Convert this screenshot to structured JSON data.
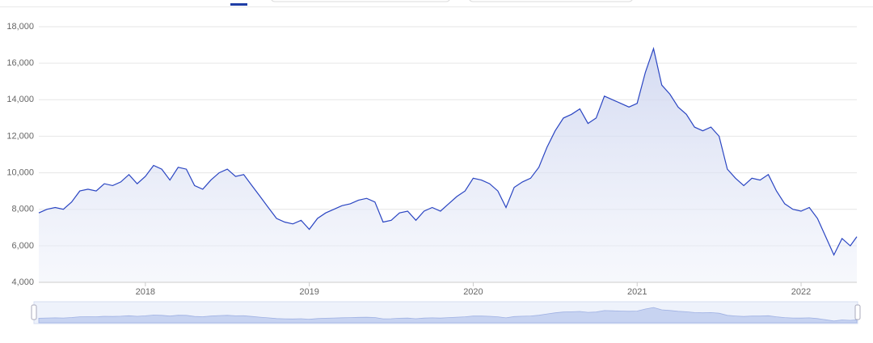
{
  "chart_data": {
    "type": "area",
    "color": "#2a45c2",
    "grid": true,
    "xlim": [
      2017.35,
      2022.34
    ],
    "xticks": [
      2018,
      2019,
      2020,
      2021,
      2022
    ],
    "ylim": [
      4000,
      18000
    ],
    "yticks": [
      {
        "value": 4000,
        "label": "4,000"
      },
      {
        "value": 6000,
        "label": "6,000"
      },
      {
        "value": 8000,
        "label": "8,000"
      },
      {
        "value": 10000,
        "label": "10,000"
      },
      {
        "value": 12000,
        "label": "12,000"
      },
      {
        "value": 14000,
        "label": "14,000"
      },
      {
        "value": 16000,
        "label": "16,000"
      },
      {
        "value": 18000,
        "label": "18,000"
      }
    ],
    "x": [
      2017.35,
      2017.4,
      2017.45,
      2017.5,
      2017.55,
      2017.6,
      2017.65,
      2017.7,
      2017.75,
      2017.8,
      2017.85,
      2017.9,
      2017.95,
      2018.0,
      2018.05,
      2018.1,
      2018.15,
      2018.2,
      2018.25,
      2018.3,
      2018.35,
      2018.4,
      2018.45,
      2018.5,
      2018.55,
      2018.6,
      2018.65,
      2018.7,
      2018.75,
      2018.8,
      2018.85,
      2018.9,
      2018.95,
      2019.0,
      2019.05,
      2019.1,
      2019.15,
      2019.2,
      2019.25,
      2019.3,
      2019.35,
      2019.4,
      2019.45,
      2019.5,
      2019.55,
      2019.6,
      2019.65,
      2019.7,
      2019.75,
      2019.8,
      2019.85,
      2019.9,
      2019.95,
      2020.0,
      2020.05,
      2020.1,
      2020.15,
      2020.2,
      2020.25,
      2020.3,
      2020.35,
      2020.4,
      2020.45,
      2020.5,
      2020.55,
      2020.6,
      2020.65,
      2020.7,
      2020.75,
      2020.8,
      2020.85,
      2020.9,
      2020.95,
      2021.0,
      2021.05,
      2021.1,
      2021.15,
      2021.2,
      2021.25,
      2021.3,
      2021.35,
      2021.4,
      2021.45,
      2021.5,
      2021.55,
      2021.6,
      2021.65,
      2021.7,
      2021.75,
      2021.8,
      2021.85,
      2021.9,
      2021.95,
      2022.0,
      2022.05,
      2022.1,
      2022.15,
      2022.2,
      2022.25,
      2022.3,
      2022.34
    ],
    "values": [
      7800,
      8000,
      8100,
      8000,
      8400,
      9000,
      9100,
      9000,
      9400,
      9300,
      9500,
      9900,
      9400,
      9800,
      10400,
      10200,
      9600,
      10300,
      10200,
      9300,
      9100,
      9600,
      10000,
      10200,
      9800,
      9900,
      9300,
      8700,
      8100,
      7500,
      7300,
      7200,
      7400,
      6900,
      7500,
      7800,
      8000,
      8200,
      8300,
      8500,
      8600,
      8400,
      7300,
      7400,
      7800,
      7900,
      7400,
      7900,
      8100,
      7900,
      8300,
      8700,
      9000,
      9700,
      9600,
      9400,
      9000,
      8100,
      9200,
      9500,
      9700,
      10300,
      11400,
      12300,
      13000,
      13200,
      13500,
      12700,
      13000,
      14200,
      14000,
      13800,
      13600,
      13800,
      15500,
      16800,
      14800,
      14300,
      13600,
      13200,
      12500,
      12300,
      12500,
      12000,
      10200,
      9700,
      9300,
      9700,
      9600,
      9900,
      9000,
      8300,
      8000,
      7900,
      8100,
      7500,
      6500,
      5500,
      6400,
      6000,
      6500
    ]
  }
}
